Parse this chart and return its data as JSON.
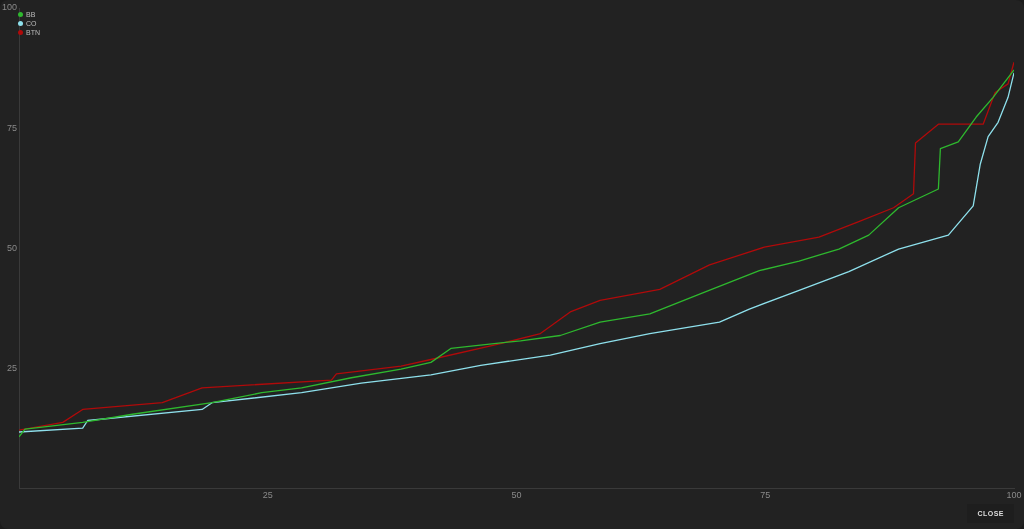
{
  "chart_data": {
    "type": "line",
    "xlim": [
      0,
      100
    ],
    "xticks": [
      25,
      50,
      75,
      100
    ],
    "ylim": [
      0,
      100
    ],
    "yticks": [
      25,
      50,
      75,
      100
    ],
    "grid": false,
    "legend": "top left",
    "marker": "none",
    "line_style": "solid",
    "annotations": [
      "CLOSE"
    ],
    "series": [
      {
        "name": "BB",
        "color": "#2eb82e",
        "x": [
          0,
          0.6,
          6.4,
          11.4,
          19.4,
          24.4,
          28.4,
          33.4,
          38.4,
          41.4,
          43.4,
          50.4,
          54.4,
          58.4,
          63.4,
          68.4,
          74.4,
          78.4,
          82.4,
          85.4,
          88.4,
          92.4,
          92.6,
          94.4,
          96.2,
          97.9,
          100
        ],
        "values": [
          10.7,
          12.3,
          13.7,
          15.4,
          17.8,
          19.9,
          20.9,
          23.0,
          24.8,
          26.2,
          29.1,
          30.7,
          31.8,
          34.6,
          36.3,
          40.4,
          45.3,
          47.3,
          49.8,
          52.7,
          58.4,
          62.3,
          70.7,
          72.1,
          77.3,
          81.4,
          87.1
        ]
      },
      {
        "name": "CO",
        "color": "#8ee0ec",
        "x": [
          0,
          6.4,
          6.9,
          18.4,
          19.4,
          28.4,
          34.4,
          41.4,
          46.4,
          53.4,
          58.4,
          63.4,
          70.4,
          73.4,
          78.4,
          83.4,
          88.4,
          93.4,
          95.9,
          96.6,
          97.4,
          98.4,
          99.4,
          100
        ],
        "values": [
          11.7,
          12.5,
          14.1,
          16.4,
          17.8,
          19.9,
          21.9,
          23.6,
          25.6,
          27.7,
          30.1,
          32.2,
          34.6,
          37.3,
          41.2,
          45.1,
          49.8,
          52.7,
          58.8,
          67.4,
          73.2,
          76.2,
          81.4,
          86.5
        ]
      },
      {
        "name": "BTN",
        "color": "#b00a0a",
        "x": [
          0,
          4.4,
          6.4,
          14.4,
          18.4,
          31.4,
          31.9,
          38.4,
          41.4,
          48.4,
          52.4,
          55.4,
          58.4,
          64.4,
          69.4,
          74.9,
          80.4,
          84.4,
          87.9,
          89.9,
          90.1,
          92.4,
          96.9,
          98.1,
          99.4,
          100
        ],
        "values": [
          12.1,
          13.7,
          16.4,
          17.8,
          20.9,
          22.5,
          23.8,
          25.4,
          26.8,
          30.1,
          32.2,
          36.7,
          39.1,
          41.4,
          46.5,
          50.2,
          52.3,
          55.5,
          58.4,
          61.3,
          71.9,
          75.8,
          75.8,
          82.4,
          84.2,
          88.7
        ]
      }
    ]
  }
}
